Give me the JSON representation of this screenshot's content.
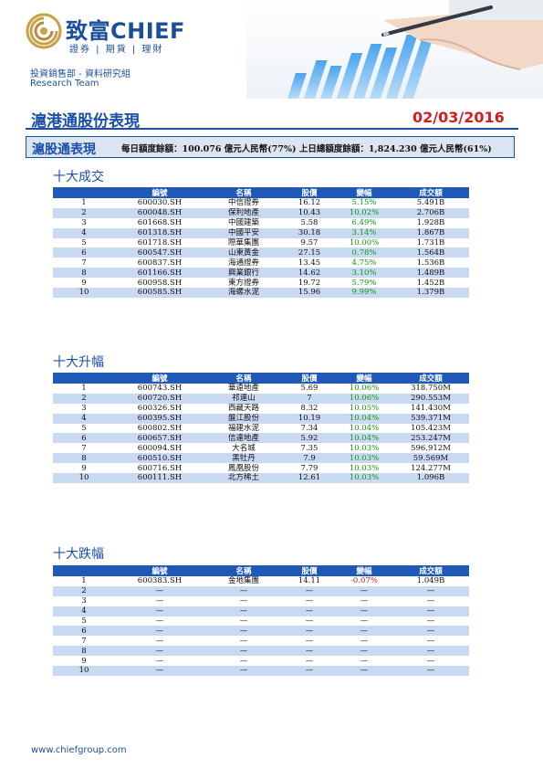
{
  "header": {
    "brand": "致富CHIEF",
    "brand_sub": "證券 | 期貨 | 理財",
    "department": "投資銷售部 - 資料研究組",
    "team": "Research Team"
  },
  "page": {
    "title": "滬港通股份表現",
    "date": "02/03/2016"
  },
  "quota": {
    "title": "滬股通表現",
    "text": "每日額度餘額：100.076 億元人民幣(77%)   上日總額度餘額：1,824.230 億元人民幣(61%)"
  },
  "columns": [
    "編號",
    "名稱",
    "股價",
    "變幅",
    "成交額"
  ],
  "tables": [
    {
      "title": "十大成交",
      "rows": [
        {
          "rank": "1",
          "code": "600030.SH",
          "name": "中信證券",
          "price": "16.12",
          "change": "5.15%",
          "dir": "up",
          "turnover": "5.491B"
        },
        {
          "rank": "2",
          "code": "600048.SH",
          "name": "保利地產",
          "price": "10.43",
          "change": "10.02%",
          "dir": "up",
          "turnover": "2.706B"
        },
        {
          "rank": "3",
          "code": "601668.SH",
          "name": "中國建築",
          "price": "5.58",
          "change": "6.49%",
          "dir": "up",
          "turnover": "1.928B"
        },
        {
          "rank": "4",
          "code": "601318.SH",
          "name": "中國平安",
          "price": "30.18",
          "change": "3.14%",
          "dir": "up",
          "turnover": "1.867B"
        },
        {
          "rank": "5",
          "code": "601718.SH",
          "name": "際華集團",
          "price": "9.57",
          "change": "10.00%",
          "dir": "up",
          "turnover": "1.731B"
        },
        {
          "rank": "6",
          "code": "600547.SH",
          "name": "山東黃金",
          "price": "27.15",
          "change": "0.78%",
          "dir": "up",
          "turnover": "1.564B"
        },
        {
          "rank": "7",
          "code": "600837.SH",
          "name": "海通證券",
          "price": "13.45",
          "change": "4.75%",
          "dir": "up",
          "turnover": "1.536B"
        },
        {
          "rank": "8",
          "code": "601166.SH",
          "name": "興業銀行",
          "price": "14.62",
          "change": "3.10%",
          "dir": "up",
          "turnover": "1.489B"
        },
        {
          "rank": "9",
          "code": "600958.SH",
          "name": "東方證券",
          "price": "19.72",
          "change": "5.79%",
          "dir": "up",
          "turnover": "1.452B"
        },
        {
          "rank": "10",
          "code": "600585.SH",
          "name": "海螺水泥",
          "price": "15.96",
          "change": "9.99%",
          "dir": "up",
          "turnover": "1.379B"
        }
      ]
    },
    {
      "title": "十大升幅",
      "rows": [
        {
          "rank": "1",
          "code": "600743.SH",
          "name": "華遠地產",
          "price": "5.69",
          "change": "10.06%",
          "dir": "up",
          "turnover": "318.750M"
        },
        {
          "rank": "2",
          "code": "600720.SH",
          "name": "祁連山",
          "price": "7",
          "change": "10.06%",
          "dir": "up",
          "turnover": "290.553M"
        },
        {
          "rank": "3",
          "code": "600326.SH",
          "name": "西藏天路",
          "price": "8.32",
          "change": "10.05%",
          "dir": "up",
          "turnover": "141.430M"
        },
        {
          "rank": "4",
          "code": "600395.SH",
          "name": "盤江股份",
          "price": "10.19",
          "change": "10.04%",
          "dir": "up",
          "turnover": "539.371M"
        },
        {
          "rank": "5",
          "code": "600802.SH",
          "name": "福建水泥",
          "price": "7.34",
          "change": "10.04%",
          "dir": "up",
          "turnover": "105.423M"
        },
        {
          "rank": "6",
          "code": "600657.SH",
          "name": "信達地產",
          "price": "5.92",
          "change": "10.04%",
          "dir": "up",
          "turnover": "253.247M"
        },
        {
          "rank": "7",
          "code": "600094.SH",
          "name": "大名城",
          "price": "7.35",
          "change": "10.03%",
          "dir": "up",
          "turnover": "596.912M"
        },
        {
          "rank": "8",
          "code": "600510.SH",
          "name": "黑牡丹",
          "price": "7.9",
          "change": "10.03%",
          "dir": "up",
          "turnover": "59.569M"
        },
        {
          "rank": "9",
          "code": "600716.SH",
          "name": "鳳凰股份",
          "price": "7.79",
          "change": "10.03%",
          "dir": "up",
          "turnover": "124.277M"
        },
        {
          "rank": "10",
          "code": "600111.SH",
          "name": "北方稀土",
          "price": "12.61",
          "change": "10.03%",
          "dir": "up",
          "turnover": "1.096B"
        }
      ]
    },
    {
      "title": "十大跌幅",
      "rows": [
        {
          "rank": "1",
          "code": "600383.SH",
          "name": "金地集團",
          "price": "14.11",
          "change": "-0.07%",
          "dir": "down",
          "turnover": "1.049B"
        },
        {
          "rank": "2",
          "code": "—",
          "name": "—",
          "price": "—",
          "change": "—",
          "dir": "none",
          "turnover": "—"
        },
        {
          "rank": "3",
          "code": "—",
          "name": "—",
          "price": "—",
          "change": "—",
          "dir": "none",
          "turnover": "—"
        },
        {
          "rank": "4",
          "code": "—",
          "name": "—",
          "price": "—",
          "change": "—",
          "dir": "none",
          "turnover": "—"
        },
        {
          "rank": "5",
          "code": "—",
          "name": "—",
          "price": "—",
          "change": "—",
          "dir": "none",
          "turnover": "—"
        },
        {
          "rank": "6",
          "code": "—",
          "name": "—",
          "price": "—",
          "change": "—",
          "dir": "none",
          "turnover": "—"
        },
        {
          "rank": "7",
          "code": "—",
          "name": "—",
          "price": "—",
          "change": "—",
          "dir": "none",
          "turnover": "—"
        },
        {
          "rank": "8",
          "code": "—",
          "name": "—",
          "price": "—",
          "change": "—",
          "dir": "none",
          "turnover": "—"
        },
        {
          "rank": "9",
          "code": "—",
          "name": "—",
          "price": "—",
          "change": "—",
          "dir": "none",
          "turnover": "—"
        },
        {
          "rank": "10",
          "code": "—",
          "name": "—",
          "price": "—",
          "change": "—",
          "dir": "none",
          "turnover": "—"
        }
      ]
    }
  ],
  "footer": {
    "url": "www.chiefgroup.com"
  },
  "colors": {
    "brand_blue": "#1b4f9c",
    "header_blue": "#1f59b8",
    "row_stripe": "#c8d9f1",
    "up_green": "#129a12",
    "down_red": "#d41c1c",
    "logo_gold": "#c9a04a"
  },
  "icons": {
    "logo": "chief-swirl-logo-icon",
    "hero": "hand-pen-bar-chart-illustration"
  }
}
